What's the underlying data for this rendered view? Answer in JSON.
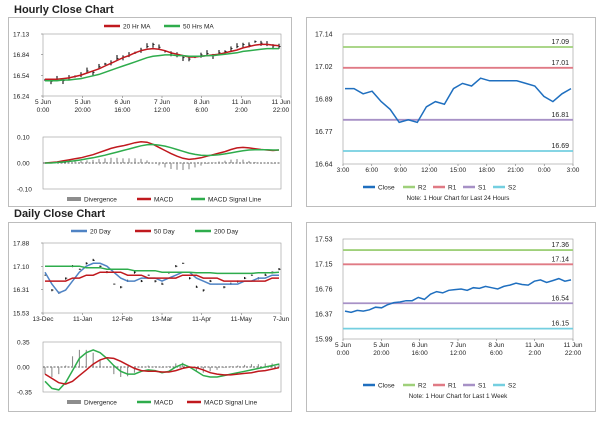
{
  "sections": {
    "hourly": "Hourly Close Chart",
    "daily": "Daily Close Chart"
  },
  "colors": {
    "price": "#111111",
    "ma_red": "#c0191e",
    "ma_green": "#2eac4c",
    "ma_blue": "#4f83c4",
    "divergence": "#8d8d8d",
    "r2": "#9fd07a",
    "r1": "#e07a85",
    "s1": "#a791c6",
    "s2": "#74cfe0",
    "close": "#1f6fbf",
    "zero": "#222222"
  },
  "chart_data": [
    {
      "id": "hourly_price",
      "type": "line",
      "legend": [
        "20 Hr MA",
        "50 Hrs MA"
      ],
      "y_ticks": [
        "17.13",
        "16.84",
        "16.54",
        "16.24"
      ],
      "ylim": [
        16.24,
        17.13
      ],
      "x_ticks": [
        "5 Jun\n0:00",
        "5 Jun\n20:00",
        "6 Jun\n16:00",
        "7 Jun\n12:00",
        "8 Jun\n6:00",
        "11 Jun\n2:00",
        "11 Jun\n22:00"
      ],
      "series": [
        {
          "name": "Close",
          "values": [
            16.47,
            16.45,
            16.48,
            16.46,
            16.5,
            16.52,
            16.55,
            16.6,
            16.58,
            16.66,
            16.7,
            16.72,
            16.78,
            16.8,
            16.83,
            16.86,
            16.9,
            16.95,
            16.98,
            16.94,
            16.88,
            16.85,
            16.82,
            16.79,
            16.77,
            16.8,
            16.83,
            16.85,
            16.82,
            16.86,
            16.88,
            16.92,
            16.95,
            16.98,
            16.97,
            17.02,
            17.0,
            16.98,
            16.96,
            16.95
          ]
        },
        {
          "name": "20 Hr MA",
          "values": [
            16.48,
            16.48,
            16.48,
            16.49,
            16.5,
            16.52,
            16.54,
            16.57,
            16.6,
            16.63,
            16.67,
            16.71,
            16.75,
            16.79,
            16.82,
            16.86,
            16.89,
            16.91,
            16.92,
            16.91,
            16.89,
            16.86,
            16.84,
            16.82,
            16.8,
            16.8,
            16.81,
            16.82,
            16.83,
            16.84,
            16.86,
            16.88,
            16.9,
            16.93,
            16.95,
            16.97,
            16.98,
            16.98,
            16.97,
            16.96
          ]
        },
        {
          "name": "50 Hrs MA",
          "values": [
            16.46,
            16.46,
            16.46,
            16.47,
            16.47,
            16.48,
            16.49,
            16.51,
            16.53,
            16.55,
            16.58,
            16.61,
            16.64,
            16.67,
            16.7,
            16.73,
            16.76,
            16.79,
            16.81,
            16.82,
            16.83,
            16.83,
            16.82,
            16.82,
            16.81,
            16.81,
            16.81,
            16.82,
            16.82,
            16.83,
            16.84,
            16.85,
            16.86,
            16.88,
            16.89,
            16.9,
            16.91,
            16.92,
            16.92,
            16.92
          ]
        }
      ]
    },
    {
      "id": "hourly_macd",
      "type": "line",
      "y_ticks": [
        "0.10",
        "0.00",
        "-0.10"
      ],
      "ylim": [
        -0.1,
        0.1
      ],
      "legend": [
        "Divergence",
        "MACD",
        "MACD Signal Line"
      ],
      "series": [
        {
          "name": "MACD",
          "values": [
            0.0,
            0.002,
            0.004,
            0.008,
            0.012,
            0.016,
            0.02,
            0.026,
            0.032,
            0.04,
            0.048,
            0.056,
            0.062,
            0.066,
            0.072,
            0.078,
            0.082,
            0.08,
            0.072,
            0.06,
            0.048,
            0.036,
            0.026,
            0.018,
            0.014,
            0.016,
            0.02,
            0.026,
            0.032,
            0.038,
            0.044,
            0.052,
            0.058,
            0.06,
            0.058,
            0.055,
            0.052,
            0.05,
            0.048,
            0.05
          ]
        },
        {
          "name": "MACD Signal Line",
          "values": [
            0.0,
            0.0,
            0.002,
            0.004,
            0.006,
            0.009,
            0.012,
            0.016,
            0.02,
            0.025,
            0.03,
            0.036,
            0.042,
            0.048,
            0.054,
            0.06,
            0.066,
            0.07,
            0.071,
            0.069,
            0.065,
            0.059,
            0.052,
            0.045,
            0.038,
            0.033,
            0.03,
            0.029,
            0.03,
            0.032,
            0.035,
            0.039,
            0.043,
            0.047,
            0.05,
            0.051,
            0.051,
            0.051,
            0.05,
            0.05
          ]
        }
      ]
    },
    {
      "id": "hourly_levels",
      "type": "line",
      "y_ticks": [
        "17.14",
        "17.02",
        "16.89",
        "16.77",
        "16.64"
      ],
      "ylim": [
        16.64,
        17.14
      ],
      "x_ticks": [
        "3:00",
        "6:00",
        "9:00",
        "12:00",
        "15:00",
        "18:00",
        "21:00",
        "0:00",
        "3:00"
      ],
      "levels": [
        {
          "name": "R2",
          "value": 17.09,
          "label": "17.09"
        },
        {
          "name": "R1",
          "value": 17.01,
          "label": "17.01"
        },
        {
          "name": "S1",
          "value": 16.81,
          "label": "16.81"
        },
        {
          "name": "S2",
          "value": 16.69,
          "label": "16.69"
        }
      ],
      "series": [
        {
          "name": "Close",
          "values": [
            16.93,
            16.93,
            16.91,
            16.92,
            16.88,
            16.85,
            16.8,
            16.81,
            16.8,
            16.86,
            16.88,
            16.87,
            16.93,
            16.95,
            16.94,
            16.97,
            16.96,
            16.96,
            16.96,
            16.96,
            16.95,
            16.94,
            16.9,
            16.88,
            16.91,
            16.93
          ]
        }
      ],
      "legend": [
        "Close",
        "R2",
        "R1",
        "S1",
        "S2"
      ],
      "note": "Note: 1 Hour Chart for Last 24 Hours"
    },
    {
      "id": "daily_price",
      "type": "line",
      "legend": [
        "20 Day",
        "50 Day",
        "200 Day"
      ],
      "y_ticks": [
        "17.88",
        "17.10",
        "16.31",
        "15.53"
      ],
      "ylim": [
        15.53,
        17.88
      ],
      "x_ticks": [
        "13-Dec",
        "11-Jan",
        "12-Feb",
        "13-Mar",
        "11-Apr",
        "11-May",
        "7-Jun"
      ],
      "series": [
        {
          "name": "Close",
          "values": [
            16.8,
            16.3,
            16.2,
            16.7,
            17.1,
            17.0,
            17.2,
            17.3,
            17.1,
            16.9,
            16.5,
            16.4,
            16.6,
            16.9,
            16.6,
            16.8,
            16.6,
            16.5,
            16.9,
            17.1,
            17.2,
            16.7,
            16.4,
            16.3,
            16.6,
            16.5,
            16.4,
            16.5,
            16.6,
            16.7,
            16.8,
            16.7,
            16.8,
            16.9,
            17.0
          ]
        },
        {
          "name": "20 Day",
          "values": [
            16.9,
            16.5,
            16.2,
            16.3,
            16.6,
            16.9,
            17.1,
            17.2,
            17.2,
            17.1,
            16.9,
            16.7,
            16.6,
            16.6,
            16.7,
            16.7,
            16.7,
            16.6,
            16.7,
            16.8,
            16.9,
            16.9,
            16.7,
            16.6,
            16.5,
            16.5,
            16.5,
            16.5,
            16.5,
            16.6,
            16.6,
            16.7,
            16.7,
            16.8,
            16.8
          ]
        },
        {
          "name": "50 Day",
          "values": [
            16.6,
            16.6,
            16.6,
            16.6,
            16.7,
            16.7,
            16.8,
            16.8,
            16.9,
            16.9,
            16.9,
            16.9,
            16.8,
            16.8,
            16.8,
            16.7,
            16.7,
            16.7,
            16.7,
            16.7,
            16.8,
            16.8,
            16.8,
            16.7,
            16.7,
            16.7,
            16.6,
            16.6,
            16.6,
            16.6,
            16.6,
            16.6,
            16.6,
            16.7,
            16.7
          ]
        },
        {
          "name": "200 Day",
          "values": [
            17.1,
            17.1,
            17.1,
            17.1,
            17.1,
            17.1,
            17.05,
            17.05,
            17.05,
            17.0,
            17.0,
            17.0,
            17.0,
            16.95,
            16.95,
            16.95,
            16.95,
            16.9,
            16.9,
            16.9,
            16.9,
            16.9,
            16.88,
            16.88,
            16.88,
            16.86,
            16.86,
            16.86,
            16.86,
            16.86,
            16.86,
            16.88,
            16.88,
            16.88,
            16.9
          ]
        }
      ]
    },
    {
      "id": "daily_macd",
      "type": "line",
      "y_ticks": [
        "0.35",
        "0.00",
        "-0.35"
      ],
      "ylim": [
        -0.35,
        0.35
      ],
      "legend": [
        "Divergence",
        "MACD",
        "MACD Signal Line"
      ],
      "series": [
        {
          "name": "MACD",
          "values": [
            -0.2,
            -0.3,
            -0.32,
            -0.22,
            -0.05,
            0.12,
            0.2,
            0.24,
            0.2,
            0.12,
            0.02,
            -0.06,
            -0.1,
            -0.1,
            -0.06,
            -0.04,
            -0.05,
            -0.08,
            -0.06,
            0.0,
            0.04,
            0.0,
            -0.06,
            -0.12,
            -0.14,
            -0.14,
            -0.12,
            -0.1,
            -0.08,
            -0.06,
            -0.04,
            -0.02,
            0.0,
            0.02,
            0.04
          ]
        },
        {
          "name": "MACD Signal Line",
          "values": [
            -0.1,
            -0.16,
            -0.22,
            -0.24,
            -0.2,
            -0.12,
            -0.04,
            0.04,
            0.1,
            0.13,
            0.12,
            0.08,
            0.03,
            -0.02,
            -0.05,
            -0.06,
            -0.06,
            -0.07,
            -0.07,
            -0.05,
            -0.02,
            0.0,
            -0.01,
            -0.04,
            -0.08,
            -0.1,
            -0.11,
            -0.11,
            -0.1,
            -0.09,
            -0.08,
            -0.06,
            -0.05,
            -0.03,
            -0.01
          ]
        }
      ]
    },
    {
      "id": "daily_levels",
      "type": "line",
      "y_ticks": [
        "17.53",
        "17.15",
        "16.76",
        "16.37",
        "15.99"
      ],
      "ylim": [
        15.99,
        17.53
      ],
      "x_ticks": [
        "5 Jun\n0:00",
        "5 Jun\n20:00",
        "6 Jun\n16:00",
        "7 Jun\n12:00",
        "8 Jun\n6:00",
        "11 Jun\n2:00",
        "11 Jun\n22:00"
      ],
      "levels": [
        {
          "name": "R2",
          "value": 17.36,
          "label": "17.36"
        },
        {
          "name": "R1",
          "value": 17.14,
          "label": "17.14"
        },
        {
          "name": "S1",
          "value": 16.54,
          "label": "16.54"
        },
        {
          "name": "S2",
          "value": 16.15,
          "label": "16.15"
        }
      ],
      "series": [
        {
          "name": "Close",
          "values": [
            16.42,
            16.4,
            16.43,
            16.42,
            16.44,
            16.48,
            16.47,
            16.52,
            16.55,
            16.56,
            16.58,
            16.58,
            16.63,
            16.6,
            16.68,
            16.72,
            16.7,
            16.74,
            16.75,
            16.76,
            16.74,
            16.78,
            16.77,
            16.8,
            16.78,
            16.76,
            16.8,
            16.82,
            16.85,
            16.83,
            16.82,
            16.88,
            16.9,
            16.86,
            16.89,
            16.92,
            16.88,
            16.9
          ]
        }
      ],
      "legend": [
        "Close",
        "R2",
        "R1",
        "S1",
        "S2"
      ],
      "note": "Note: 1 Hour Chart for Last 1 Week"
    }
  ]
}
